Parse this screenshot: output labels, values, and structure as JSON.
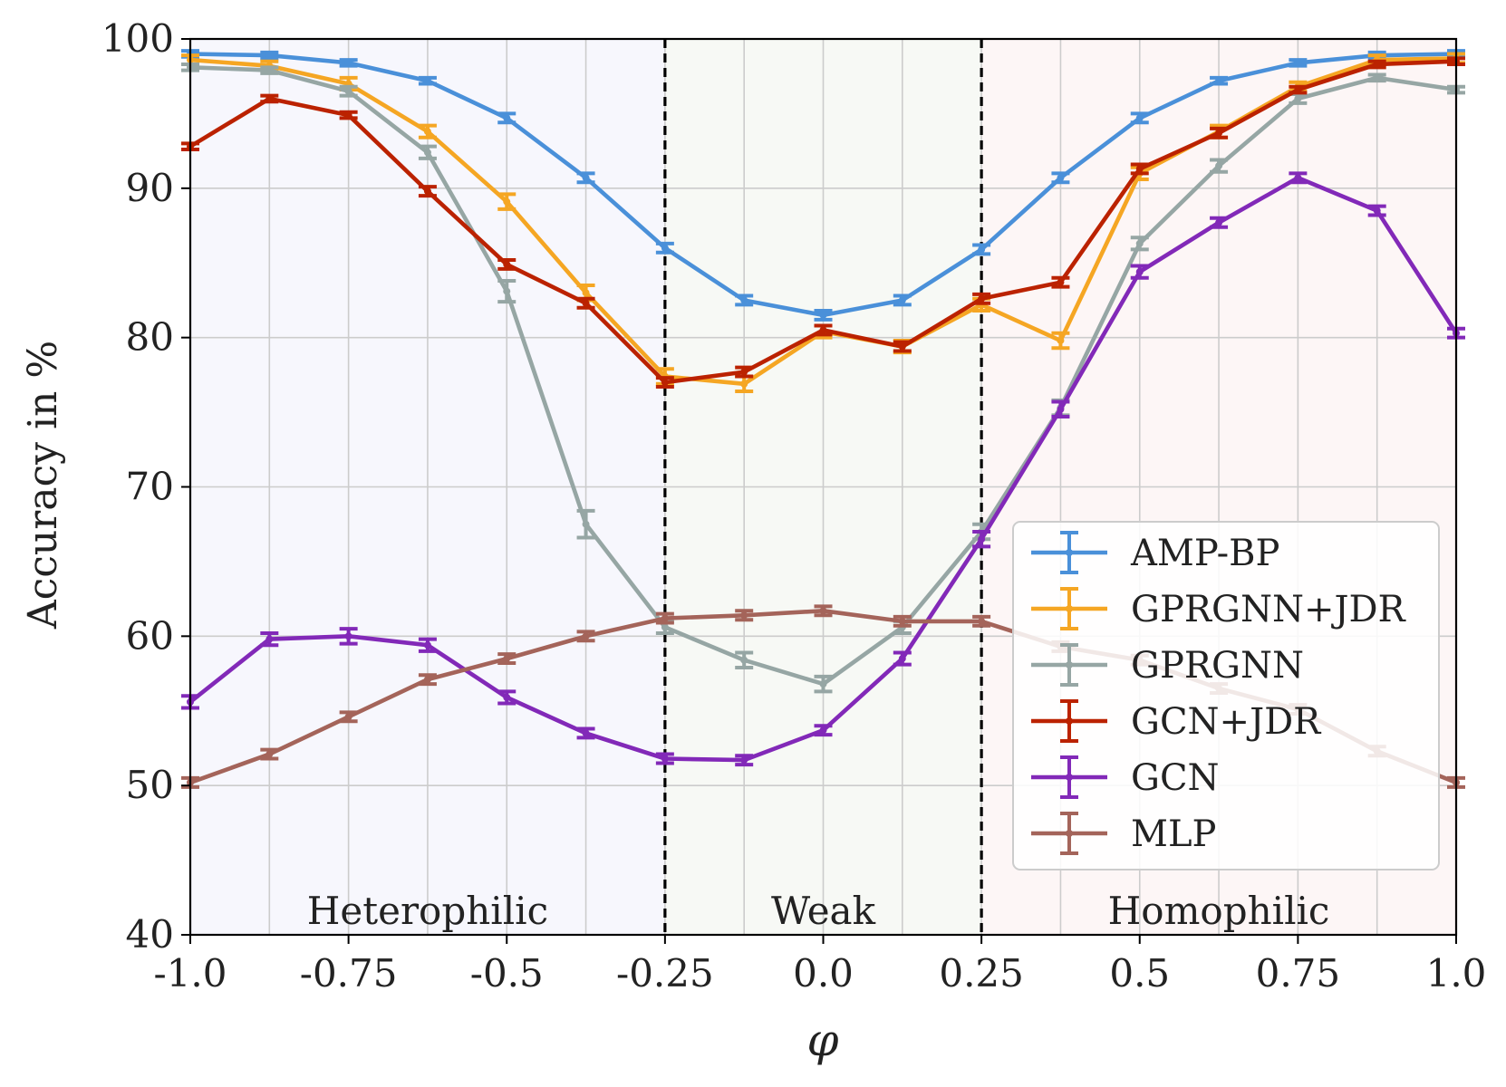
{
  "chart_data": {
    "type": "line",
    "title": "",
    "xlabel": "φ",
    "ylabel": "Accuracy in %",
    "xlim": [
      -1.0,
      1.0
    ],
    "ylim": [
      40,
      100
    ],
    "grid": true,
    "legend_position": "right",
    "x_ticks": [
      -1.0,
      -0.75,
      -0.5,
      -0.25,
      0.0,
      0.25,
      0.5,
      0.75,
      1.0
    ],
    "x_tick_labels": [
      "-1.0",
      "-0.75",
      "-0.5",
      "-0.25",
      "0.0",
      "0.25",
      "0.5",
      "0.75",
      "1.0"
    ],
    "y_ticks": [
      40,
      50,
      60,
      70,
      80,
      90,
      100
    ],
    "y_tick_labels": [
      "40",
      "50",
      "60",
      "70",
      "80",
      "90",
      "100"
    ],
    "x_grid": [
      -1.0,
      -0.875,
      -0.75,
      -0.625,
      -0.5,
      -0.375,
      -0.25,
      -0.125,
      0.0,
      0.125,
      0.25,
      0.375,
      0.5,
      0.625,
      0.75,
      0.875,
      1.0
    ],
    "regions": [
      {
        "label": "Heterophilic",
        "x_range": [
          -1.0,
          -0.25
        ],
        "color": "#f7f7fd"
      },
      {
        "label": "Weak",
        "x_range": [
          -0.25,
          0.25
        ],
        "color": "#f7f9f5"
      },
      {
        "label": "Homophilic",
        "x_range": [
          0.25,
          1.0
        ],
        "color": "#fdf6f6"
      }
    ],
    "vlines": [
      -0.25,
      0.25
    ],
    "x": [
      -1.0,
      -0.875,
      -0.75,
      -0.625,
      -0.5,
      -0.375,
      -0.25,
      -0.125,
      0.0,
      0.125,
      0.25,
      0.375,
      0.5,
      0.625,
      0.75,
      0.875,
      1.0
    ],
    "series": [
      {
        "name": "AMP-BP",
        "color": "#4a90d9",
        "values": [
          99.0,
          98.9,
          98.4,
          97.2,
          94.7,
          90.7,
          86.0,
          82.5,
          81.5,
          82.5,
          85.9,
          90.7,
          94.7,
          97.2,
          98.4,
          98.9,
          99.0
        ],
        "err": [
          0.2,
          0.2,
          0.2,
          0.2,
          0.3,
          0.3,
          0.3,
          0.3,
          0.3,
          0.3,
          0.3,
          0.3,
          0.3,
          0.2,
          0.2,
          0.2,
          0.2
        ]
      },
      {
        "name": "GPRGNN+JDR",
        "color": "#f5a623",
        "values": [
          98.6,
          98.2,
          97.0,
          93.8,
          89.1,
          83.0,
          77.4,
          76.9,
          80.4,
          79.4,
          82.2,
          79.8,
          91.0,
          93.8,
          96.8,
          98.6,
          98.7
        ],
        "err": [
          0.3,
          0.3,
          0.4,
          0.4,
          0.5,
          0.5,
          0.5,
          0.5,
          0.4,
          0.4,
          0.4,
          0.5,
          0.4,
          0.4,
          0.3,
          0.3,
          0.3
        ]
      },
      {
        "name": "GPRGNN",
        "color": "#96a6a4",
        "values": [
          98.1,
          97.9,
          96.5,
          92.4,
          83.1,
          67.5,
          60.6,
          58.4,
          56.8,
          60.6,
          67.0,
          75.3,
          86.3,
          91.5,
          96.0,
          97.4,
          96.6
        ],
        "err": [
          0.2,
          0.2,
          0.3,
          0.4,
          0.7,
          0.9,
          0.4,
          0.5,
          0.5,
          0.4,
          0.5,
          0.5,
          0.4,
          0.4,
          0.3,
          0.2,
          0.2
        ]
      },
      {
        "name": "GCN+JDR",
        "color": "#bb2200",
        "values": [
          92.8,
          96.0,
          94.9,
          89.8,
          84.9,
          82.3,
          77.0,
          77.7,
          80.5,
          79.4,
          82.6,
          83.7,
          91.3,
          93.7,
          96.6,
          98.3,
          98.5
        ],
        "err": [
          0.2,
          0.2,
          0.2,
          0.3,
          0.3,
          0.3,
          0.3,
          0.3,
          0.3,
          0.3,
          0.3,
          0.3,
          0.3,
          0.3,
          0.2,
          0.2,
          0.2
        ]
      },
      {
        "name": "GCN",
        "color": "#8229b8",
        "values": [
          55.6,
          59.8,
          60.0,
          59.4,
          55.9,
          53.5,
          51.8,
          51.7,
          53.7,
          58.5,
          66.5,
          75.2,
          84.4,
          87.7,
          90.7,
          88.5,
          80.3
        ],
        "err": [
          0.4,
          0.4,
          0.5,
          0.4,
          0.4,
          0.3,
          0.3,
          0.3,
          0.3,
          0.4,
          0.5,
          0.5,
          0.4,
          0.3,
          0.3,
          0.3,
          0.3
        ]
      },
      {
        "name": "MLP",
        "color": "#a4645a",
        "values": [
          50.2,
          52.1,
          54.6,
          57.1,
          58.5,
          60.0,
          61.2,
          61.4,
          61.7,
          61.0,
          61.0,
          59.3,
          58.4,
          56.5,
          55.1,
          52.3,
          50.2
        ],
        "err": [
          0.3,
          0.3,
          0.3,
          0.3,
          0.3,
          0.3,
          0.3,
          0.3,
          0.3,
          0.3,
          0.3,
          0.3,
          0.3,
          0.3,
          0.3,
          0.3,
          0.3
        ]
      }
    ]
  }
}
